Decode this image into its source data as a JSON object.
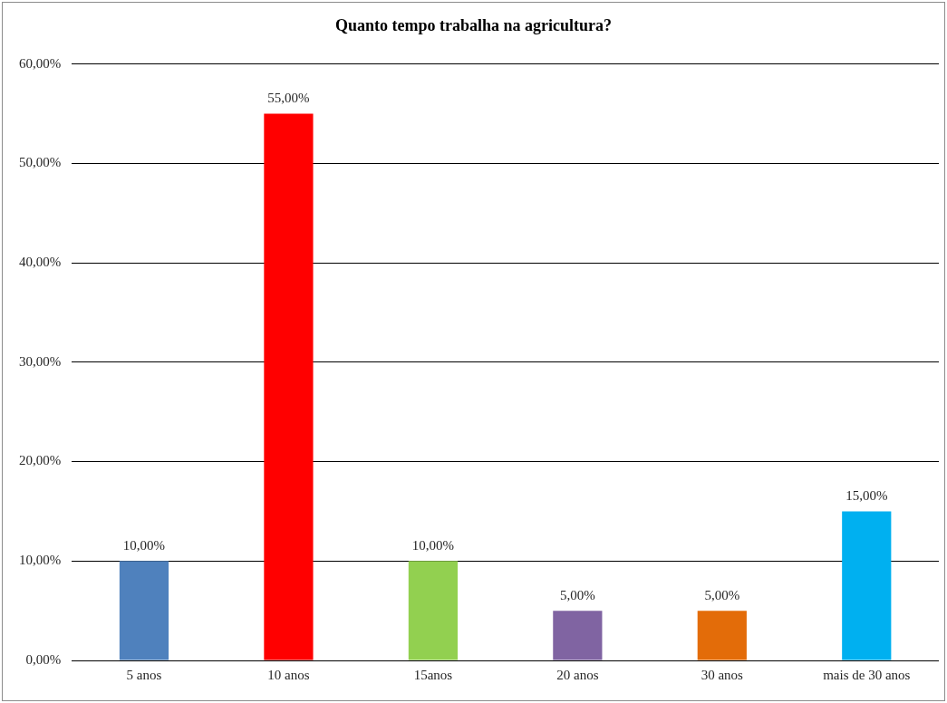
{
  "chart_data": {
    "type": "bar",
    "title": "Quanto tempo trabalha na agricultura?",
    "categories": [
      "5 anos",
      "10 anos",
      "15anos",
      "20 anos",
      "30 anos",
      "mais de 30 anos"
    ],
    "values": [
      10,
      55,
      10,
      5,
      5,
      15
    ],
    "colors": [
      "#4f81bd",
      "#ff0000",
      "#92d050",
      "#8064a2",
      "#e36c09",
      "#00b0f0"
    ],
    "value_labels": [
      "10,00%",
      "55,00%",
      "10,00%",
      "5,00%",
      "5,00%",
      "15,00%"
    ],
    "ylim": [
      0,
      60
    ],
    "yticks": [
      {
        "value": 0,
        "label": "0,00%"
      },
      {
        "value": 10,
        "label": "10,00%"
      },
      {
        "value": 20,
        "label": "20,00%"
      },
      {
        "value": 30,
        "label": "30,00%"
      },
      {
        "value": 40,
        "label": "40,00%"
      },
      {
        "value": 50,
        "label": "50,00%"
      },
      {
        "value": 60,
        "label": "60,00%"
      }
    ],
    "grid": "y",
    "legend": false
  }
}
